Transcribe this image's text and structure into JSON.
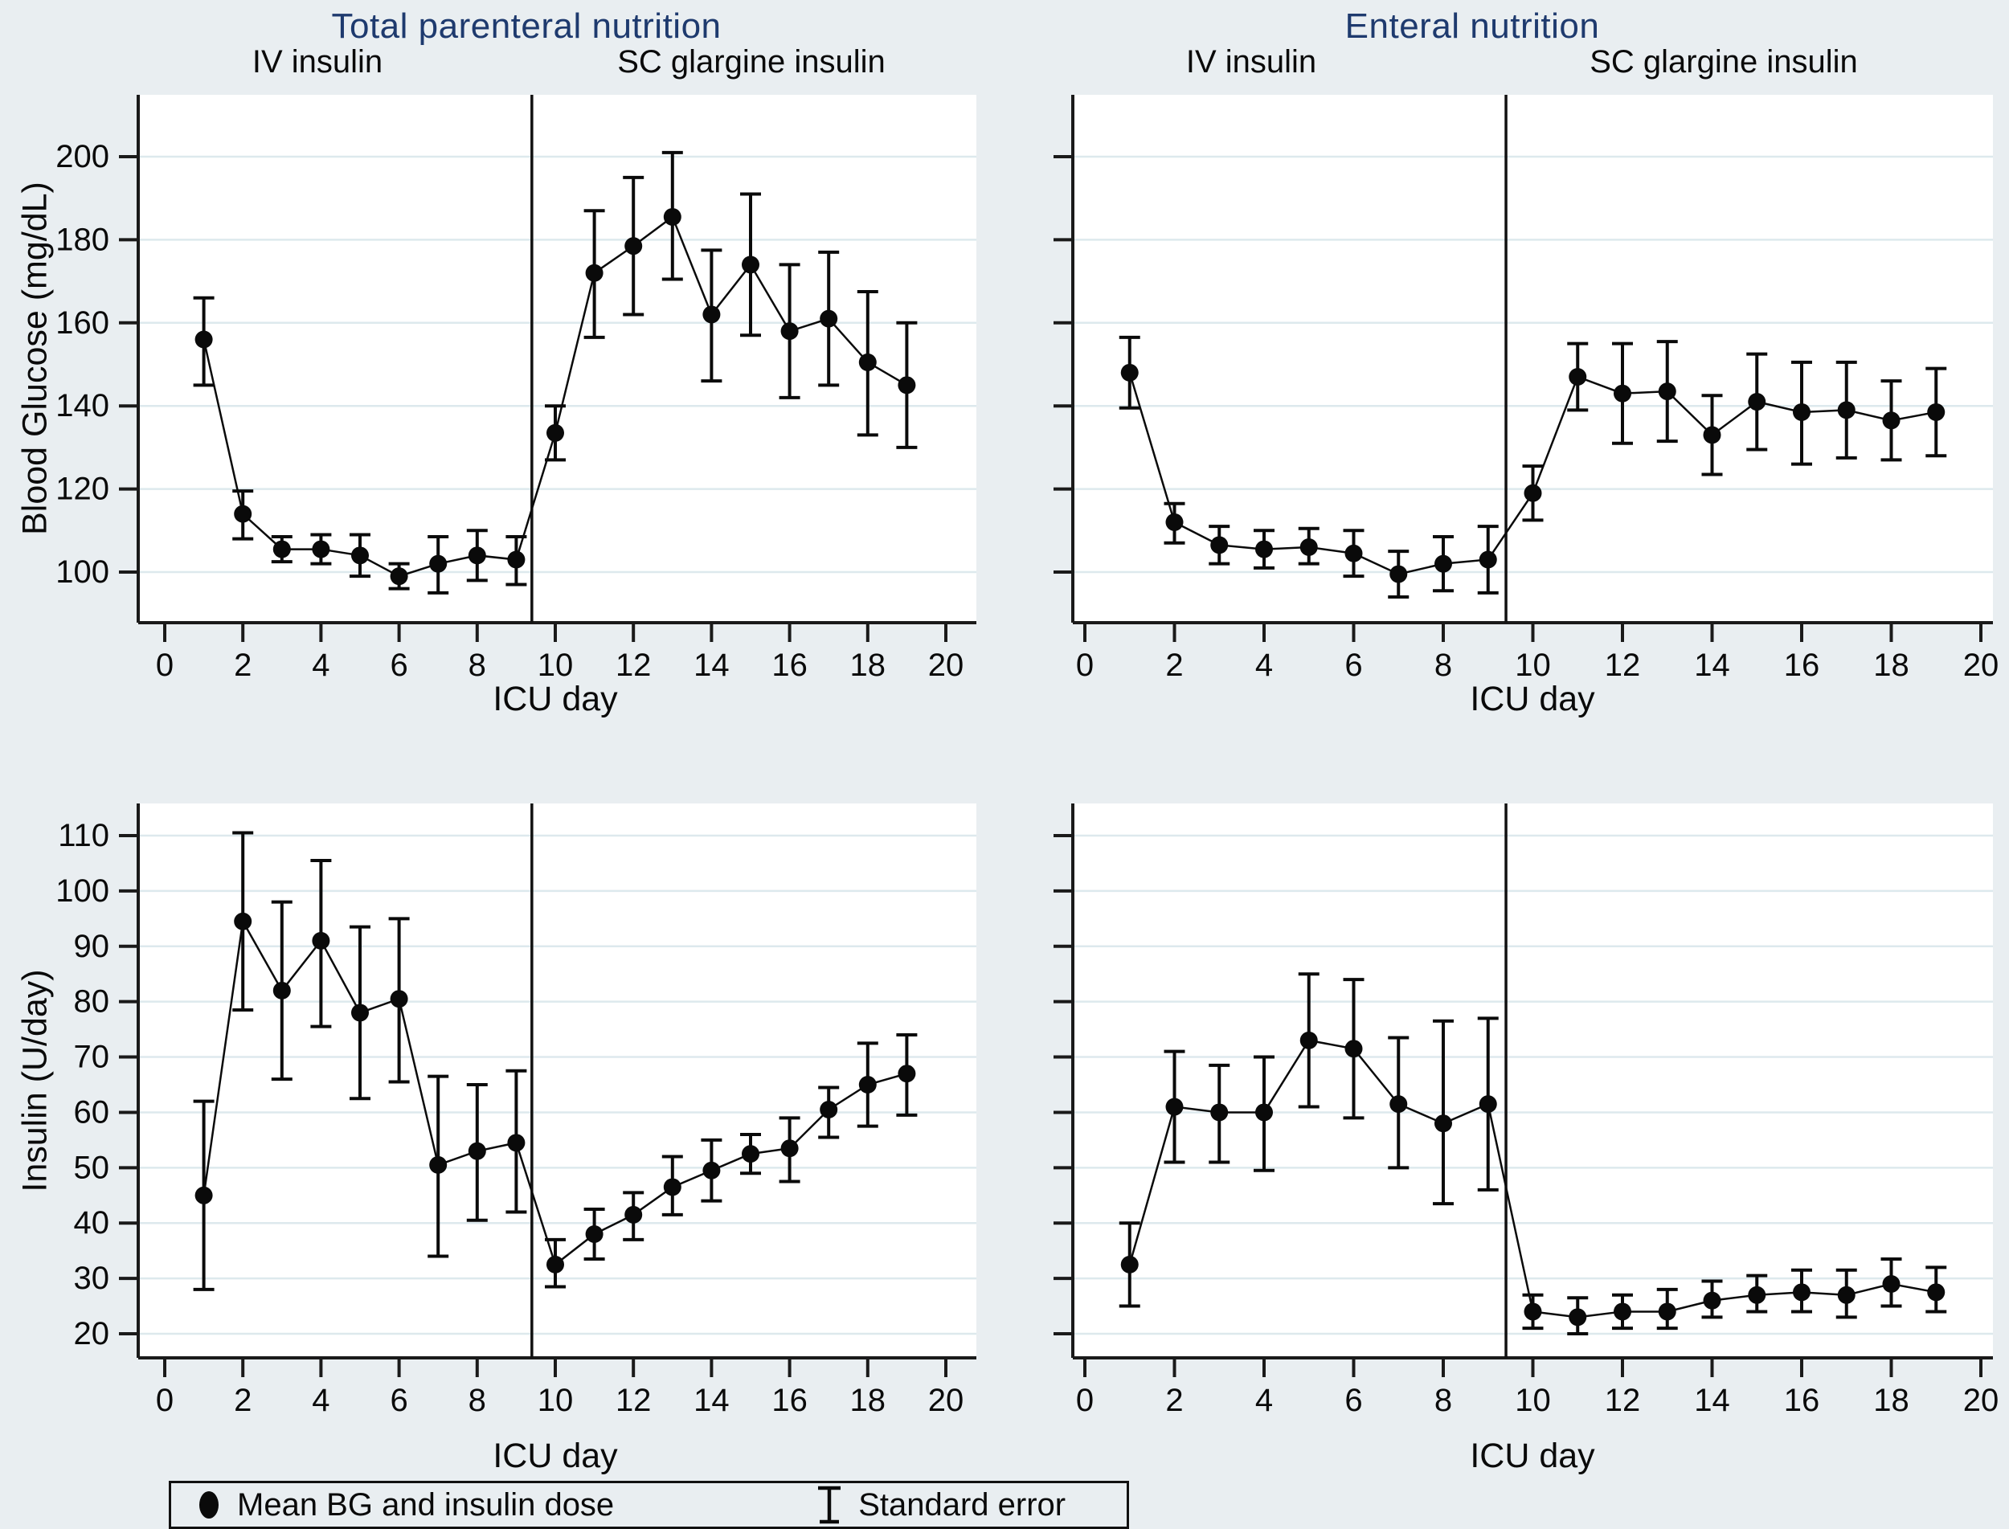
{
  "colors": {
    "page_background": "#e9eef1",
    "plot_background": "#ffffff",
    "gridline": "#dde9ed",
    "axis": "#1a1a1a",
    "title_navy": "#1e3a6e",
    "marker_black": "#0a0a0a"
  },
  "titles": {
    "left": "Total parenteral nutrition",
    "right": "Enteral nutrition"
  },
  "phase_labels": {
    "iv": "IV insulin",
    "sc": "SC glargine insulin"
  },
  "axis": {
    "x_label": "ICU day",
    "bg_y_label": "Blood Glucose (mg/dL)",
    "insulin_y_label": "Insulin (U/day)"
  },
  "legend": {
    "marker_label": "Mean BG and insulin dose",
    "se_label": "Standard error"
  },
  "chart_data": [
    {
      "id": "tpn-blood-glucose",
      "type": "line",
      "group_title": "Total parenteral nutrition",
      "phase_left": "IV insulin",
      "phase_right": "SC glargine insulin",
      "xlabel": "ICU day",
      "ylabel": "Blood Glucose (mg/dL)",
      "x": [
        1,
        2,
        3,
        4,
        5,
        6,
        7,
        8,
        9,
        10,
        11,
        12,
        13,
        14,
        15,
        16,
        17,
        18,
        19
      ],
      "values": [
        156,
        114,
        105.5,
        105.5,
        104,
        99,
        102,
        104,
        103,
        133.5,
        172,
        178.5,
        185.5,
        162,
        174,
        158,
        161,
        150.5,
        145
      ],
      "se_low": [
        145,
        108,
        102.5,
        102,
        99,
        96,
        95,
        98,
        97,
        127,
        156.5,
        162,
        170.5,
        146,
        157,
        142,
        145,
        133,
        130
      ],
      "se_high": [
        166,
        119.5,
        108.5,
        109,
        109,
        102,
        108.5,
        110,
        108.5,
        140,
        187,
        195,
        201,
        177.5,
        191,
        174,
        177,
        167.5,
        160
      ],
      "y_ticks": [
        100,
        120,
        140,
        160,
        180,
        200
      ],
      "x_ticks": [
        0,
        2,
        4,
        6,
        8,
        10,
        12,
        14,
        16,
        18,
        20
      ],
      "xlim": [
        0,
        20
      ],
      "ylim": [
        88,
        215
      ],
      "divider_x": 9.4,
      "grid": "horizontal",
      "legend_marker": "Mean BG and insulin dose",
      "legend_error": "Standard error"
    },
    {
      "id": "enteral-blood-glucose",
      "type": "line",
      "group_title": "Enteral nutrition",
      "phase_left": "IV insulin",
      "phase_right": "SC glargine insulin",
      "xlabel": "ICU day",
      "ylabel": "Blood Glucose (mg/dL)",
      "x": [
        1,
        2,
        3,
        4,
        5,
        6,
        7,
        8,
        9,
        10,
        11,
        12,
        13,
        14,
        15,
        16,
        17,
        18,
        19
      ],
      "values": [
        148,
        112,
        106.5,
        105.5,
        106,
        104.5,
        99.5,
        102,
        103,
        119,
        147,
        143,
        143.5,
        133,
        141,
        138.5,
        139,
        136.5,
        138.5
      ],
      "se_low": [
        139.5,
        107,
        102,
        101,
        102,
        99,
        94,
        95.5,
        95,
        112.5,
        139,
        131,
        131.5,
        123.5,
        129.5,
        126,
        127.5,
        127,
        128
      ],
      "se_high": [
        156.5,
        116.5,
        111,
        110,
        110.5,
        110,
        105,
        108.5,
        111,
        125.5,
        155,
        155,
        155.5,
        142.5,
        152.5,
        150.5,
        150.5,
        146,
        149
      ],
      "y_ticks": [
        100,
        120,
        140,
        160,
        180,
        200
      ],
      "x_ticks": [
        0,
        2,
        4,
        6,
        8,
        10,
        12,
        14,
        16,
        18,
        20
      ],
      "xlim": [
        0,
        20
      ],
      "ylim": [
        88,
        215
      ],
      "divider_x": 9.4,
      "grid": "horizontal",
      "legend_marker": "Mean BG and insulin dose",
      "legend_error": "Standard error"
    },
    {
      "id": "tpn-insulin",
      "type": "line",
      "group_title": "Total parenteral nutrition",
      "phase_left": "IV insulin",
      "phase_right": "SC glargine insulin",
      "xlabel": "ICU day",
      "ylabel": "Insulin (U/day)",
      "x": [
        1,
        2,
        3,
        4,
        5,
        6,
        7,
        8,
        9,
        10,
        11,
        12,
        13,
        14,
        15,
        16,
        17,
        18,
        19
      ],
      "values": [
        45,
        94.5,
        82,
        91,
        78,
        80.5,
        50.5,
        53,
        54.5,
        32.5,
        38,
        41.5,
        46.5,
        49.5,
        52.5,
        53.5,
        60.5,
        65,
        67
      ],
      "se_low": [
        28,
        78.5,
        66,
        75.5,
        62.5,
        65.5,
        34,
        40.5,
        42,
        28.5,
        33.5,
        37,
        41.5,
        44,
        49,
        47.5,
        55.5,
        57.5,
        59.5
      ],
      "se_high": [
        62,
        110.5,
        98,
        105.5,
        93.5,
        95,
        66.5,
        65,
        67.5,
        37,
        42.5,
        45.5,
        52,
        55,
        56,
        59,
        64.5,
        72.5,
        74
      ],
      "y_ticks": [
        20,
        30,
        40,
        50,
        60,
        70,
        80,
        90,
        100,
        110
      ],
      "x_ticks": [
        0,
        2,
        4,
        6,
        8,
        10,
        12,
        14,
        16,
        18,
        20
      ],
      "xlim": [
        0,
        20
      ],
      "ylim": [
        15,
        116
      ],
      "divider_x": 9.4,
      "grid": "horizontal",
      "legend_marker": "Mean BG and insulin dose",
      "legend_error": "Standard error"
    },
    {
      "id": "enteral-insulin",
      "type": "line",
      "group_title": "Enteral nutrition",
      "phase_left": "IV insulin",
      "phase_right": "SC glargine insulin",
      "xlabel": "ICU day",
      "ylabel": "Insulin (U/day)",
      "x": [
        1,
        2,
        3,
        4,
        5,
        6,
        7,
        8,
        9,
        10,
        11,
        12,
        13,
        14,
        15,
        16,
        17,
        18,
        19
      ],
      "values": [
        32.5,
        61,
        60,
        60,
        73,
        71.5,
        61.5,
        58,
        61.5,
        24,
        23,
        24,
        24,
        26,
        27,
        27.5,
        27,
        29,
        27.5
      ],
      "se_low": [
        25,
        51,
        51,
        49.5,
        61,
        59,
        50,
        43.5,
        46,
        21,
        20,
        21,
        21,
        23,
        24,
        24,
        23,
        25,
        24
      ],
      "se_high": [
        40,
        71,
        68.5,
        70,
        85,
        84,
        73.5,
        76.5,
        77,
        27,
        26.5,
        27,
        28,
        29.5,
        30.5,
        31.5,
        31.5,
        33.5,
        32
      ],
      "y_ticks": [
        20,
        30,
        40,
        50,
        60,
        70,
        80,
        90,
        100,
        110
      ],
      "x_ticks": [
        0,
        2,
        4,
        6,
        8,
        10,
        12,
        14,
        16,
        18,
        20
      ],
      "xlim": [
        0,
        20
      ],
      "ylim": [
        15,
        116
      ],
      "divider_x": 9.4,
      "grid": "horizontal",
      "legend_marker": "Mean BG and insulin dose",
      "legend_error": "Standard error"
    }
  ]
}
